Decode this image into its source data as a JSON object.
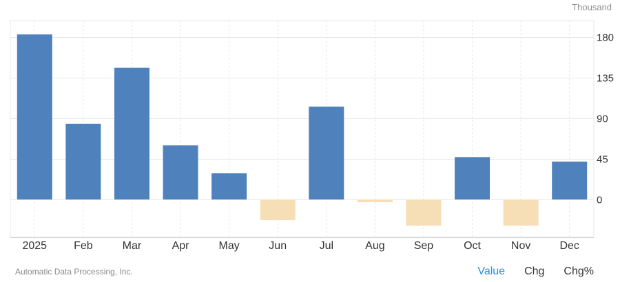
{
  "unit": "Thousand",
  "source": "Automatic Data Processing, Inc.",
  "tabs": [
    {
      "label": "Value",
      "active": true
    },
    {
      "label": "Chg",
      "active": false
    },
    {
      "label": "Chg%",
      "active": false
    }
  ],
  "colors": {
    "positive": "#4f81bd",
    "negative": "#f6deb6",
    "grid": "#e8e8e8"
  },
  "chart_data": {
    "type": "bar",
    "title": "",
    "xlabel": "",
    "ylabel": "",
    "categories": [
      "2025",
      "Feb",
      "Mar",
      "Apr",
      "May",
      "Jun",
      "Jul",
      "Aug",
      "Sep",
      "Oct",
      "Nov",
      "Dec"
    ],
    "values": [
      183,
      84,
      146,
      60,
      29,
      -23,
      103,
      -3,
      -29,
      47,
      -29,
      42
    ],
    "yticks": [
      0,
      45,
      90,
      135,
      180
    ],
    "ylim": [
      -45,
      200
    ],
    "grid": true,
    "y_axis_position": "right"
  }
}
